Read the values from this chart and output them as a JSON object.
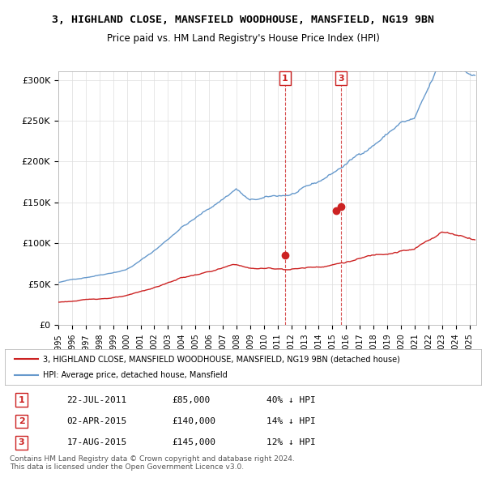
{
  "title": "3, HIGHLAND CLOSE, MANSFIELD WOODHOUSE, MANSFIELD, NG19 9BN",
  "subtitle": "Price paid vs. HM Land Registry's House Price Index (HPI)",
  "ylabel_ticks": [
    "£0",
    "£50K",
    "£100K",
    "£150K",
    "£200K",
    "£250K",
    "£300K"
  ],
  "ylim": [
    0,
    310000
  ],
  "xlim_start": 1995.0,
  "xlim_end": 2025.5,
  "hpi_color": "#6699cc",
  "price_color": "#cc2222",
  "sale_color": "#cc2222",
  "transaction1": {
    "date_num": 2011.55,
    "price": 85000,
    "label": "1"
  },
  "transaction2": {
    "date_num": 2015.25,
    "price": 140000,
    "label": "2"
  },
  "transaction3": {
    "date_num": 2015.62,
    "price": 145000,
    "label": "3"
  },
  "legend_text1": "3, HIGHLAND CLOSE, MANSFIELD WOODHOUSE, MANSFIELD, NG19 9BN (detached house)",
  "legend_text2": "HPI: Average price, detached house, Mansfield",
  "table_rows": [
    [
      "1",
      "22-JUL-2011",
      "£85,000",
      "40% ↓ HPI"
    ],
    [
      "2",
      "02-APR-2015",
      "£140,000",
      "14% ↓ HPI"
    ],
    [
      "3",
      "17-AUG-2015",
      "£145,000",
      "12% ↓ HPI"
    ]
  ],
  "footer": "Contains HM Land Registry data © Crown copyright and database right 2024.\nThis data is licensed under the Open Government Licence v3.0.",
  "background_color": "#ffffff",
  "grid_color": "#dddddd"
}
